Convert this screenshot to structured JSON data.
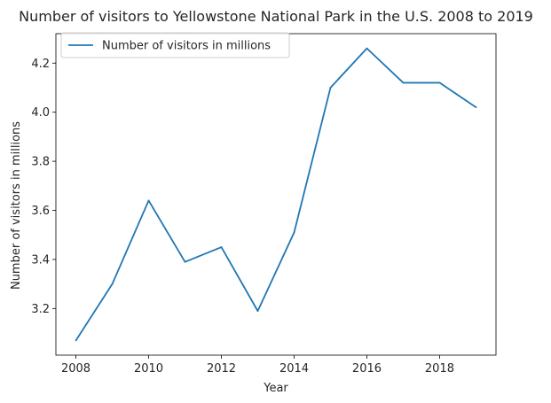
{
  "chart_data": {
    "type": "line",
    "title": "Number of visitors to Yellowstone National Park in the U.S. 2008 to 2019",
    "xlabel": "Year",
    "ylabel": "Number of visitors in millions",
    "x": [
      2008,
      2009,
      2010,
      2011,
      2012,
      2013,
      2014,
      2015,
      2016,
      2017,
      2018,
      2019
    ],
    "series": [
      {
        "name": "Number of visitors in millions",
        "values": [
          3.07,
          3.3,
          3.64,
          3.39,
          3.45,
          3.19,
          3.51,
          4.1,
          4.26,
          4.12,
          4.12,
          4.02
        ],
        "color": "#1f77b4"
      }
    ],
    "xlim": [
      2007.45,
      2019.55
    ],
    "ylim": [
      3.01,
      4.32
    ],
    "xticks": [
      "2008",
      "2010",
      "2012",
      "2014",
      "2016",
      "2018"
    ],
    "yticks": [
      "3.2",
      "3.4",
      "3.6",
      "3.8",
      "4.0",
      "4.2"
    ],
    "legend_position": "upper-left",
    "grid": false
  }
}
